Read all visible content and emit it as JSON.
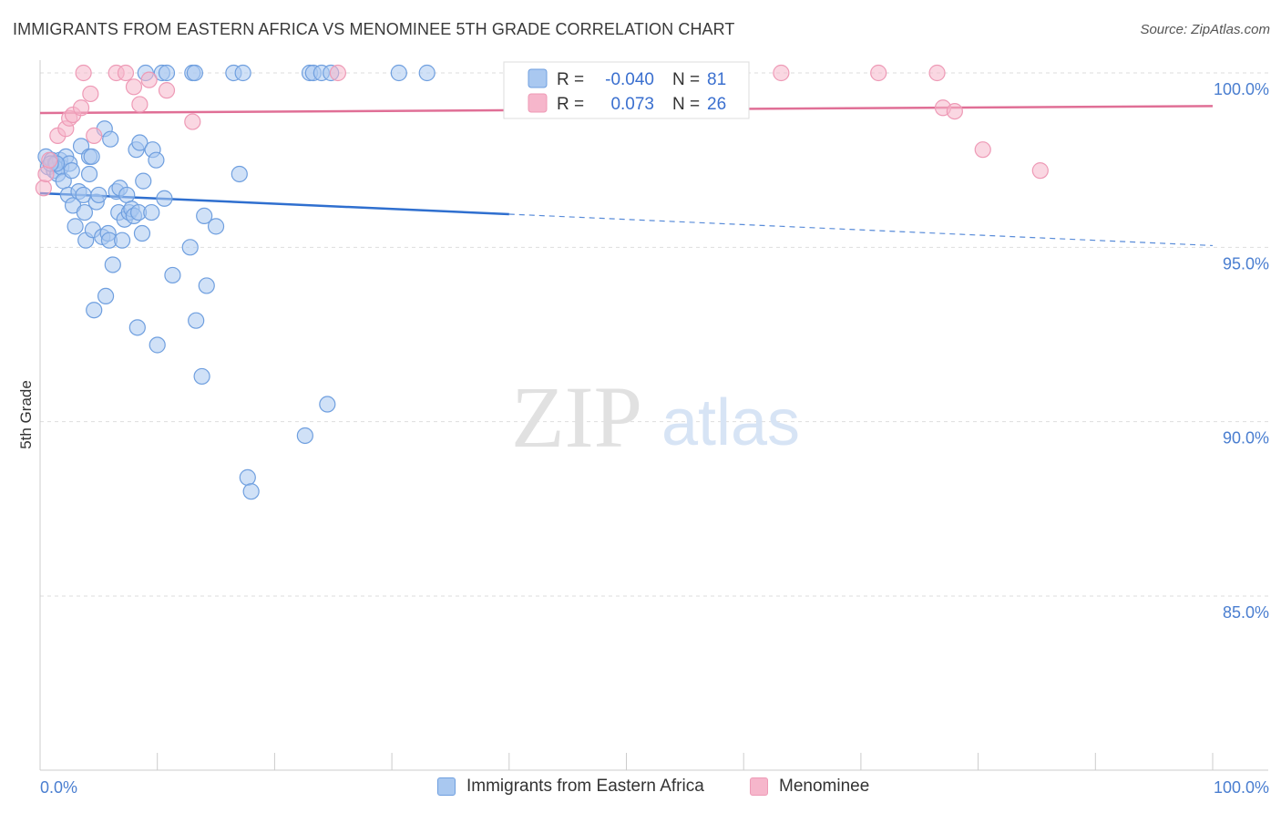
{
  "header": {
    "title": "IMMIGRANTS FROM EASTERN AFRICA VS MENOMINEE 5TH GRADE CORRELATION CHART",
    "source": "Source: ZipAtlas.com"
  },
  "watermark": {
    "zip": "ZIP",
    "atlas": "atlas"
  },
  "colors": {
    "blue_fill": "#a9c8f0",
    "blue_stroke": "#6f9fdf",
    "blue_line": "#2f6fcf",
    "pink_fill": "#f6b6cb",
    "pink_stroke": "#ee9ab6",
    "pink_line": "#e06f96",
    "grid": "#dddddd",
    "tick_text": "#4a7ed0"
  },
  "stats_legend": {
    "rows": [
      {
        "r_label": "R =",
        "r_value": "-0.040",
        "n_label": "N =",
        "n_value": "81",
        "series": "blue"
      },
      {
        "r_label": "R =",
        "r_value": "0.073",
        "n_label": "N =",
        "n_value": "26",
        "series": "pink"
      }
    ]
  },
  "bottom_legend": {
    "items": [
      {
        "label": "Immigrants from Eastern Africa",
        "series": "blue"
      },
      {
        "label": "Menominee",
        "series": "pink"
      }
    ]
  },
  "chart_data": {
    "type": "scatter",
    "title": "IMMIGRANTS FROM EASTERN AFRICA VS MENOMINEE 5TH GRADE CORRELATION CHART",
    "xlabel": "",
    "ylabel": "5th Grade",
    "xlim": [
      0,
      100
    ],
    "ylim": [
      80.3,
      100.7
    ],
    "y_ticks": [
      {
        "value": 100,
        "label": "100.0%"
      },
      {
        "value": 95,
        "label": "95.0%"
      },
      {
        "value": 90,
        "label": "90.0%"
      },
      {
        "value": 85,
        "label": "85.0%"
      }
    ],
    "x_tick_labels": {
      "left": "0.0%",
      "right": "100.0%"
    },
    "x_minor_ticks": [
      0,
      10,
      20,
      30,
      40,
      50,
      60,
      70,
      80,
      90,
      100
    ],
    "grid": true,
    "legend_position": "top-center",
    "series": [
      {
        "name": "Immigrants from Eastern Africa",
        "color": "blue",
        "R": -0.04,
        "N": 81,
        "trend": {
          "solid_x": [
            0,
            40
          ],
          "solid_y": [
            96.55,
            95.95
          ],
          "dashed_x": [
            40,
            100
          ],
          "dashed_y": [
            95.95,
            95.05
          ]
        },
        "points": [
          [
            0.5,
            97.6
          ],
          [
            0.7,
            97.3
          ],
          [
            1.0,
            97.5
          ],
          [
            1.2,
            97.2
          ],
          [
            1.3,
            97.4
          ],
          [
            1.5,
            97.1
          ],
          [
            1.7,
            97.5
          ],
          [
            1.8,
            97.3
          ],
          [
            2.0,
            96.9
          ],
          [
            2.2,
            97.6
          ],
          [
            2.4,
            96.5
          ],
          [
            2.5,
            97.4
          ],
          [
            2.7,
            97.2
          ],
          [
            2.8,
            96.2
          ],
          [
            3.0,
            95.6
          ],
          [
            3.3,
            96.6
          ],
          [
            3.5,
            97.9
          ],
          [
            3.7,
            96.5
          ],
          [
            3.8,
            96.0
          ],
          [
            3.9,
            95.2
          ],
          [
            4.2,
            97.6
          ],
          [
            4.2,
            97.1
          ],
          [
            4.4,
            97.6
          ],
          [
            4.5,
            95.5
          ],
          [
            4.6,
            93.2
          ],
          [
            4.8,
            96.3
          ],
          [
            5.0,
            96.5
          ],
          [
            5.3,
            95.3
          ],
          [
            5.5,
            98.4
          ],
          [
            5.6,
            93.6
          ],
          [
            5.8,
            95.4
          ],
          [
            5.9,
            95.2
          ],
          [
            6.0,
            98.1
          ],
          [
            6.2,
            94.5
          ],
          [
            6.5,
            96.6
          ],
          [
            6.7,
            96.0
          ],
          [
            6.8,
            96.7
          ],
          [
            7.0,
            95.2
          ],
          [
            7.2,
            95.8
          ],
          [
            7.4,
            96.5
          ],
          [
            7.6,
            96.0
          ],
          [
            7.8,
            96.1
          ],
          [
            8.0,
            95.9
          ],
          [
            8.2,
            97.8
          ],
          [
            8.3,
            92.7
          ],
          [
            8.4,
            96.0
          ],
          [
            8.5,
            98.0
          ],
          [
            8.7,
            95.4
          ],
          [
            8.8,
            96.9
          ],
          [
            9.0,
            100.0
          ],
          [
            9.5,
            96.0
          ],
          [
            9.6,
            97.8
          ],
          [
            9.9,
            97.5
          ],
          [
            10.0,
            92.2
          ],
          [
            10.4,
            100.0
          ],
          [
            10.6,
            96.4
          ],
          [
            10.8,
            100.0
          ],
          [
            11.3,
            94.2
          ],
          [
            12.8,
            95.0
          ],
          [
            13.0,
            100.0
          ],
          [
            13.2,
            100.0
          ],
          [
            13.3,
            92.9
          ],
          [
            13.8,
            91.3
          ],
          [
            14.0,
            95.9
          ],
          [
            14.2,
            93.9
          ],
          [
            15.0,
            95.6
          ],
          [
            16.5,
            100.0
          ],
          [
            17.0,
            97.1
          ],
          [
            17.3,
            100.0
          ],
          [
            17.7,
            88.4
          ],
          [
            18.0,
            88.0
          ],
          [
            22.6,
            89.6
          ],
          [
            23.0,
            100.0
          ],
          [
            23.3,
            100.0
          ],
          [
            24.0,
            100.0
          ],
          [
            24.5,
            90.5
          ],
          [
            24.8,
            100.0
          ],
          [
            30.6,
            100.0
          ],
          [
            33.0,
            100.0
          ],
          [
            1.4,
            97.4
          ],
          [
            0.9,
            97.4
          ]
        ]
      },
      {
        "name": "Menominee",
        "color": "pink",
        "R": 0.073,
        "N": 26,
        "trend": {
          "solid_x": [
            0,
            100
          ],
          "solid_y": [
            98.85,
            99.05
          ]
        },
        "points": [
          [
            0.3,
            96.7
          ],
          [
            0.5,
            97.1
          ],
          [
            0.8,
            97.5
          ],
          [
            1.5,
            98.2
          ],
          [
            2.2,
            98.4
          ],
          [
            2.5,
            98.7
          ],
          [
            2.8,
            98.8
          ],
          [
            3.5,
            99.0
          ],
          [
            3.7,
            100.0
          ],
          [
            4.3,
            99.4
          ],
          [
            4.6,
            98.2
          ],
          [
            6.5,
            100.0
          ],
          [
            7.3,
            100.0
          ],
          [
            8.0,
            99.6
          ],
          [
            8.5,
            99.1
          ],
          [
            9.3,
            99.8
          ],
          [
            10.8,
            99.5
          ],
          [
            13.0,
            98.6
          ],
          [
            25.4,
            100.0
          ],
          [
            63.2,
            100.0
          ],
          [
            71.5,
            100.0
          ],
          [
            76.5,
            100.0
          ],
          [
            77.0,
            99.0
          ],
          [
            78.0,
            98.9
          ],
          [
            80.4,
            97.8
          ],
          [
            85.3,
            97.2
          ]
        ]
      }
    ]
  }
}
